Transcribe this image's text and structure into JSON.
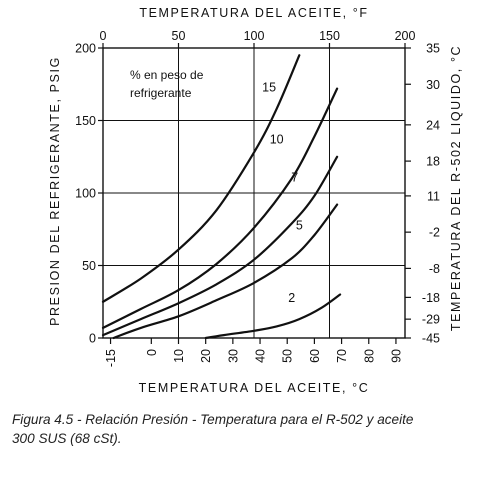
{
  "chart_data": {
    "type": "line",
    "x_top": {
      "label": "TEMPERATURA DEL ACEITE, °F",
      "ticks": [
        "0",
        "50",
        "100",
        "150",
        "200"
      ],
      "range": [
        0,
        200
      ]
    },
    "x_bottom": {
      "label": "TEMPERATURA DEL ACEITE, °C",
      "ticks": [
        "-15",
        "0",
        "10",
        "20",
        "30",
        "40",
        "50",
        "60",
        "70",
        "80",
        "90"
      ]
    },
    "y_left": {
      "label": "PRESION DEL REFRIGERANTE, PSIG",
      "ticks": [
        "0",
        "50",
        "100",
        "150",
        "200"
      ],
      "range": [
        0,
        200
      ]
    },
    "y_right": {
      "label": "TEMPERATURA DEL R-502 LIQUIDO, °C",
      "ticks": [
        {
          "label": "35",
          "psig": 200
        },
        {
          "label": "30",
          "psig": 175
        },
        {
          "label": "24",
          "psig": 147
        },
        {
          "label": "18",
          "psig": 122
        },
        {
          "label": "11",
          "psig": 98
        },
        {
          "label": "-2",
          "psig": 73
        },
        {
          "label": "-8",
          "psig": 48
        },
        {
          "label": "-18",
          "psig": 28
        },
        {
          "label": "-29",
          "psig": 13
        },
        {
          "label": "-45",
          "psig": 0
        }
      ]
    },
    "grid": true,
    "annotation": [
      "% en peso de",
      "refrigerante"
    ],
    "series": [
      {
        "name": "15",
        "x_f": [
          0,
          25,
          50,
          75,
          100,
          115,
          130
        ],
        "y_psig": [
          25,
          41,
          61,
          88,
          128,
          158,
          195
        ]
      },
      {
        "name": "10",
        "x_f": [
          0,
          25,
          50,
          75,
          100,
          125,
          140,
          155
        ],
        "y_psig": [
          7,
          20,
          33,
          51,
          76,
          110,
          139,
          172
        ]
      },
      {
        "name": "7",
        "x_f": [
          0,
          25,
          50,
          75,
          100,
          125,
          140,
          155
        ],
        "y_psig": [
          2,
          13,
          24,
          37,
          54,
          79,
          98,
          125
        ]
      },
      {
        "name": "5",
        "x_f": [
          7,
          25,
          50,
          75,
          100,
          125,
          140,
          155
        ],
        "y_psig": [
          0,
          7,
          15,
          26,
          38,
          55,
          71,
          92
        ]
      },
      {
        "name": "2",
        "x_f": [
          68,
          80,
          100,
          115,
          130,
          145,
          157
        ],
        "y_psig": [
          0,
          2,
          5,
          8,
          13,
          21,
          30
        ]
      }
    ],
    "series_labels": [
      {
        "name": "15",
        "at_f": 110,
        "at_psig": 170
      },
      {
        "name": "10",
        "at_f": 115,
        "at_psig": 134
      },
      {
        "name": "7",
        "at_f": 127,
        "at_psig": 108
      },
      {
        "name": "5",
        "at_f": 130,
        "at_psig": 75
      },
      {
        "name": "2",
        "at_f": 125,
        "at_psig": 25
      }
    ]
  },
  "caption": {
    "line1": "Figura 4.5 - Relación Presión - Temperatura para el R-502 y aceite",
    "line2": "300 SUS (68 cSt)."
  }
}
